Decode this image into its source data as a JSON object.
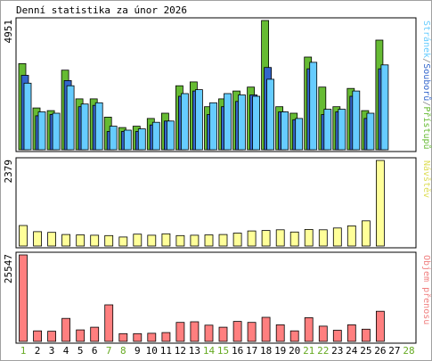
{
  "chart_data": {
    "type": "bar",
    "title": "Denní statistika za únor 2026",
    "x": [
      "1",
      "2",
      "3",
      "4",
      "5",
      "6",
      "7",
      "8",
      "9",
      "10",
      "11",
      "12",
      "13",
      "14",
      "15",
      "16",
      "17",
      "18",
      "19",
      "20",
      "21",
      "22",
      "23",
      "24",
      "25",
      "26",
      "27",
      "28"
    ],
    "weekend_days": [
      "1",
      "7",
      "8",
      "14",
      "15",
      "21",
      "22",
      "28"
    ],
    "panels": [
      {
        "id": "traffic",
        "max_label": "4951",
        "ymax": 4951,
        "legend": [
          {
            "text": "Stránek",
            "color": "#66ccff"
          },
          {
            "text": "/",
            "color": "#888888"
          },
          {
            "text": "Souborů",
            "color": "#3366cc"
          },
          {
            "text": "/",
            "color": "#888888"
          },
          {
            "text": "Přístupů",
            "color": "#66bb33"
          }
        ],
        "series": [
          {
            "name": "Přístupů",
            "color": "#66bb33",
            "values": [
              3300,
              1600,
              1500,
              3050,
              1950,
              1950,
              1250,
              850,
              900,
              1200,
              1400,
              2450,
              2600,
              1650,
              1950,
              2250,
              2400,
              4951,
              1650,
              1400,
              3550,
              2400,
              1650,
              2350,
              1500,
              4200,
              0,
              0
            ]
          },
          {
            "name": "Souborů",
            "color": "#3366cc",
            "values": [
              2850,
              1300,
              1350,
              2650,
              1650,
              1700,
              700,
              700,
              700,
              950,
              1100,
              2050,
              2250,
              1350,
              1650,
              1850,
              2100,
              3150,
              1450,
              1150,
              3100,
              1350,
              1450,
              2050,
              1200,
              3100,
              0,
              0
            ]
          },
          {
            "name": "Stránek",
            "color": "#66ccff",
            "values": [
              2550,
              1450,
              1400,
              2450,
              1750,
              1800,
              900,
              750,
              800,
              1050,
              1100,
              2150,
              2300,
              1800,
              2150,
              2100,
              2050,
              2700,
              1450,
              1200,
              3350,
              1550,
              1550,
              2250,
              1400,
              3250,
              0,
              0
            ]
          }
        ]
      },
      {
        "id": "visits",
        "max_label": "2379",
        "ymax": 2379,
        "legend": [
          {
            "text": "Návštěv",
            "color": "#dddd55"
          }
        ],
        "series": [
          {
            "name": "Návštěv",
            "color": "#ffff99",
            "values": [
              570,
              400,
              380,
              320,
              310,
              300,
              290,
              250,
              330,
              300,
              340,
              290,
              300,
              310,
              320,
              360,
              420,
              430,
              450,
              390,
              460,
              450,
              500,
              560,
              700,
              2379,
              0,
              0
            ]
          }
        ]
      },
      {
        "id": "volume",
        "max_label": "25547",
        "ymax": 25547,
        "legend": [
          {
            "text": "Objem přenosu",
            "color": "#f08080"
          }
        ],
        "series": [
          {
            "name": "Objem přenosu",
            "color": "#ff7f7f",
            "values": [
              25547,
              3100,
              3000,
              6800,
              3400,
              4200,
              10800,
              2300,
              2300,
              2400,
              2600,
              5600,
              5800,
              4800,
              4200,
              5900,
              5600,
              7100,
              4900,
              3100,
              7000,
              4500,
              3300,
              4900,
              3600,
              8900,
              0,
              0
            ]
          }
        ]
      }
    ]
  }
}
